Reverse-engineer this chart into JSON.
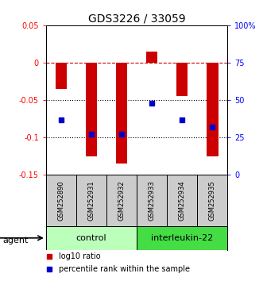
{
  "title": "GDS3226 / 33059",
  "samples": [
    "GSM252890",
    "GSM252931",
    "GSM252932",
    "GSM252933",
    "GSM252934",
    "GSM252935"
  ],
  "log10_ratio": [
    -0.035,
    -0.125,
    -0.135,
    0.015,
    -0.045,
    -0.125
  ],
  "percentile_rank": [
    37,
    27,
    27,
    48,
    37,
    32
  ],
  "ylim_left": [
    -0.15,
    0.05
  ],
  "ylim_right": [
    0,
    100
  ],
  "yticks_left": [
    0.05,
    0,
    -0.05,
    -0.1,
    -0.15
  ],
  "yticks_right": [
    100,
    75,
    50,
    25,
    0
  ],
  "bar_color": "#cc0000",
  "dot_color": "#0000cc",
  "hline_color": "#cc0000",
  "dotline_color": "black",
  "groups": [
    {
      "label": "control",
      "samples_range": [
        0,
        2
      ],
      "color": "#bbffbb"
    },
    {
      "label": "interleukin-22",
      "samples_range": [
        3,
        5
      ],
      "color": "#44dd44"
    }
  ],
  "agent_label": "agent",
  "legend_bar_label": "log10 ratio",
  "legend_dot_label": "percentile rank within the sample",
  "title_fontsize": 10,
  "tick_fontsize": 7,
  "label_fontsize": 8,
  "sample_fontsize": 6,
  "legend_fontsize": 7
}
